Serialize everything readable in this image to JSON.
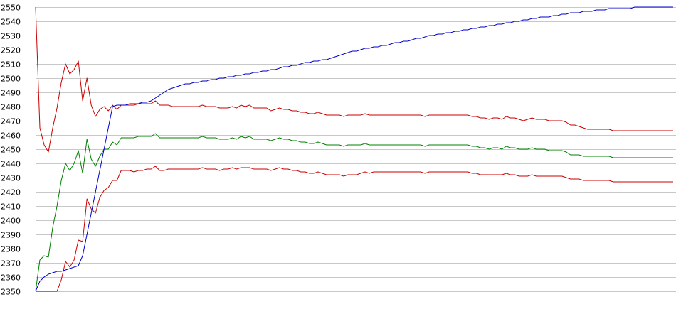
{
  "chart_data": {
    "type": "line",
    "title": "",
    "xlabel": "",
    "ylabel": "",
    "ylim": [
      2350,
      2550
    ],
    "yticks": [
      2350,
      2360,
      2370,
      2380,
      2390,
      2400,
      2410,
      2420,
      2430,
      2440,
      2450,
      2460,
      2470,
      2480,
      2490,
      2500,
      2510,
      2520,
      2530,
      2540,
      2550
    ],
    "grid": "horizontal",
    "legend": "none",
    "x": [
      0,
      1,
      2,
      3,
      4,
      5,
      6,
      7,
      8,
      9,
      10,
      11,
      12,
      13,
      14,
      15,
      16,
      17,
      18,
      19,
      20,
      21,
      22,
      23,
      24,
      25,
      26,
      27,
      28,
      29,
      30,
      31,
      32,
      33,
      34,
      35,
      36,
      37,
      38,
      39,
      40,
      41,
      42,
      43,
      44,
      45,
      46,
      47,
      48,
      49,
      50,
      51,
      52,
      53,
      54,
      55,
      56,
      57,
      58,
      59,
      60,
      61,
      62,
      63,
      64,
      65,
      66,
      67,
      68,
      69,
      70,
      71,
      72,
      73,
      74,
      75,
      76,
      77,
      78,
      79,
      80,
      81,
      82,
      83,
      84,
      85,
      86,
      87,
      88,
      89,
      90,
      91,
      92,
      93,
      94,
      95,
      96,
      97,
      98,
      99,
      100,
      101,
      102,
      103,
      104,
      105,
      106,
      107,
      108,
      109,
      110,
      111,
      112,
      113,
      114,
      115,
      116,
      117,
      118,
      119,
      120,
      121,
      122,
      123,
      124,
      125,
      126,
      127,
      128,
      129,
      130,
      131,
      132,
      133,
      134,
      135,
      136,
      137,
      138,
      139,
      140,
      141,
      142,
      143,
      144,
      145,
      146,
      147,
      148,
      149
    ],
    "series": [
      {
        "color": "#cc0000",
        "values": [
          2550,
          2465,
          2453,
          2448,
          2465,
          2479,
          2497,
          2510,
          2503,
          2506,
          2512,
          2484,
          2500,
          2481,
          2473,
          2478,
          2480,
          2477,
          2481,
          2478,
          2481,
          2481,
          2481,
          2481,
          2482,
          2482,
          2482,
          2482,
          2484,
          2481,
          2481,
          2481,
          2480,
          2480,
          2480,
          2480,
          2480,
          2480,
          2480,
          2481,
          2480,
          2480,
          2480,
          2479,
          2479,
          2479,
          2480,
          2479,
          2481,
          2480,
          2481,
          2479,
          2479,
          2479,
          2479,
          2477,
          2478,
          2479,
          2478,
          2478,
          2477,
          2477,
          2476,
          2476,
          2475,
          2475,
          2476,
          2475,
          2474,
          2474,
          2474,
          2474,
          2473,
          2474,
          2474,
          2474,
          2474,
          2475,
          2474,
          2474,
          2474,
          2474,
          2474,
          2474,
          2474,
          2474,
          2474,
          2474,
          2474,
          2474,
          2474,
          2473,
          2474,
          2474,
          2474,
          2474,
          2474,
          2474,
          2474,
          2474,
          2474,
          2474,
          2473,
          2473,
          2472,
          2472,
          2471,
          2472,
          2472,
          2471,
          2473,
          2472,
          2472,
          2471,
          2470,
          2471,
          2472,
          2471,
          2471,
          2471,
          2470,
          2470,
          2470,
          2470,
          2469,
          2467,
          2467,
          2466,
          2465,
          2464,
          2464,
          2464,
          2464,
          2464,
          2464,
          2463,
          2463,
          2463,
          2463,
          2463,
          2463,
          2463,
          2463,
          2463,
          2463,
          2463,
          2463,
          2463,
          2463,
          2463
        ]
      },
      {
        "color": "#008000",
        "values": [
          2350,
          2372,
          2375,
          2374,
          2395,
          2410,
          2428,
          2440,
          2435,
          2440,
          2449,
          2433,
          2457,
          2443,
          2438,
          2445,
          2450,
          2450,
          2455,
          2453,
          2458,
          2458,
          2458,
          2458,
          2459,
          2459,
          2459,
          2459,
          2461,
          2458,
          2458,
          2458,
          2458,
          2458,
          2458,
          2458,
          2458,
          2458,
          2458,
          2459,
          2458,
          2458,
          2458,
          2457,
          2457,
          2457,
          2458,
          2457,
          2459,
          2458,
          2459,
          2457,
          2457,
          2457,
          2457,
          2456,
          2457,
          2458,
          2457,
          2457,
          2456,
          2456,
          2455,
          2455,
          2454,
          2454,
          2455,
          2454,
          2453,
          2453,
          2453,
          2453,
          2452,
          2453,
          2453,
          2453,
          2453,
          2454,
          2453,
          2453,
          2453,
          2453,
          2453,
          2453,
          2453,
          2453,
          2453,
          2453,
          2453,
          2453,
          2453,
          2452,
          2453,
          2453,
          2453,
          2453,
          2453,
          2453,
          2453,
          2453,
          2453,
          2453,
          2452,
          2452,
          2451,
          2451,
          2450,
          2451,
          2451,
          2450,
          2452,
          2451,
          2451,
          2450,
          2450,
          2450,
          2451,
          2450,
          2450,
          2450,
          2449,
          2449,
          2449,
          2449,
          2448,
          2446,
          2446,
          2446,
          2445,
          2445,
          2445,
          2445,
          2445,
          2445,
          2445,
          2444,
          2444,
          2444,
          2444,
          2444,
          2444,
          2444,
          2444,
          2444,
          2444,
          2444,
          2444,
          2444,
          2444,
          2444
        ]
      },
      {
        "color": "#cc0000",
        "values": [
          2350,
          2350,
          2350,
          2350,
          2350,
          2350,
          2358,
          2371,
          2367,
          2372,
          2386,
          2385,
          2415,
          2408,
          2405,
          2416,
          2421,
          2423,
          2428,
          2428,
          2435,
          2435,
          2435,
          2434,
          2435,
          2435,
          2436,
          2436,
          2438,
          2435,
          2435,
          2436,
          2436,
          2436,
          2436,
          2436,
          2436,
          2436,
          2436,
          2437,
          2436,
          2436,
          2436,
          2435,
          2436,
          2436,
          2437,
          2436,
          2437,
          2437,
          2437,
          2436,
          2436,
          2436,
          2436,
          2435,
          2436,
          2437,
          2436,
          2436,
          2435,
          2435,
          2434,
          2434,
          2433,
          2433,
          2434,
          2433,
          2432,
          2432,
          2432,
          2432,
          2431,
          2432,
          2432,
          2432,
          2433,
          2434,
          2433,
          2434,
          2434,
          2434,
          2434,
          2434,
          2434,
          2434,
          2434,
          2434,
          2434,
          2434,
          2434,
          2433,
          2434,
          2434,
          2434,
          2434,
          2434,
          2434,
          2434,
          2434,
          2434,
          2434,
          2433,
          2433,
          2432,
          2432,
          2432,
          2432,
          2432,
          2432,
          2433,
          2432,
          2432,
          2431,
          2431,
          2431,
          2432,
          2431,
          2431,
          2431,
          2431,
          2431,
          2431,
          2431,
          2430,
          2429,
          2429,
          2429,
          2428,
          2428,
          2428,
          2428,
          2428,
          2428,
          2428,
          2427,
          2427,
          2427,
          2427,
          2427,
          2427,
          2427,
          2427,
          2427,
          2427,
          2427,
          2427,
          2427,
          2427,
          2427
        ]
      },
      {
        "color": "#0000cc",
        "values": [
          2350,
          2357,
          2360,
          2362,
          2363,
          2364,
          2364,
          2365,
          2366,
          2367,
          2368,
          2375,
          2390,
          2405,
          2420,
          2435,
          2450,
          2465,
          2480,
          2481,
          2481,
          2481,
          2482,
          2482,
          2482,
          2483,
          2483,
          2484,
          2486,
          2488,
          2490,
          2492,
          2493,
          2494,
          2495,
          2496,
          2496,
          2497,
          2497,
          2498,
          2498,
          2499,
          2499,
          2500,
          2500,
          2501,
          2501,
          2502,
          2502,
          2503,
          2503,
          2504,
          2504,
          2505,
          2505,
          2506,
          2506,
          2507,
          2508,
          2508,
          2509,
          2509,
          2510,
          2511,
          2511,
          2512,
          2512,
          2513,
          2513,
          2514,
          2515,
          2516,
          2517,
          2518,
          2519,
          2519,
          2520,
          2521,
          2521,
          2522,
          2522,
          2523,
          2523,
          2524,
          2525,
          2525,
          2526,
          2526,
          2527,
          2528,
          2528,
          2529,
          2530,
          2530,
          2531,
          2531,
          2532,
          2532,
          2533,
          2533,
          2534,
          2534,
          2535,
          2535,
          2536,
          2536,
          2537,
          2537,
          2538,
          2538,
          2539,
          2539,
          2540,
          2540,
          2541,
          2541,
          2542,
          2542,
          2543,
          2543,
          2543,
          2544,
          2544,
          2545,
          2545,
          2546,
          2546,
          2546,
          2547,
          2547,
          2547,
          2548,
          2548,
          2548,
          2549,
          2549,
          2549,
          2549,
          2549,
          2549,
          2550,
          2550,
          2550,
          2550,
          2550,
          2550,
          2550,
          2550,
          2550,
          2550
        ]
      }
    ]
  }
}
